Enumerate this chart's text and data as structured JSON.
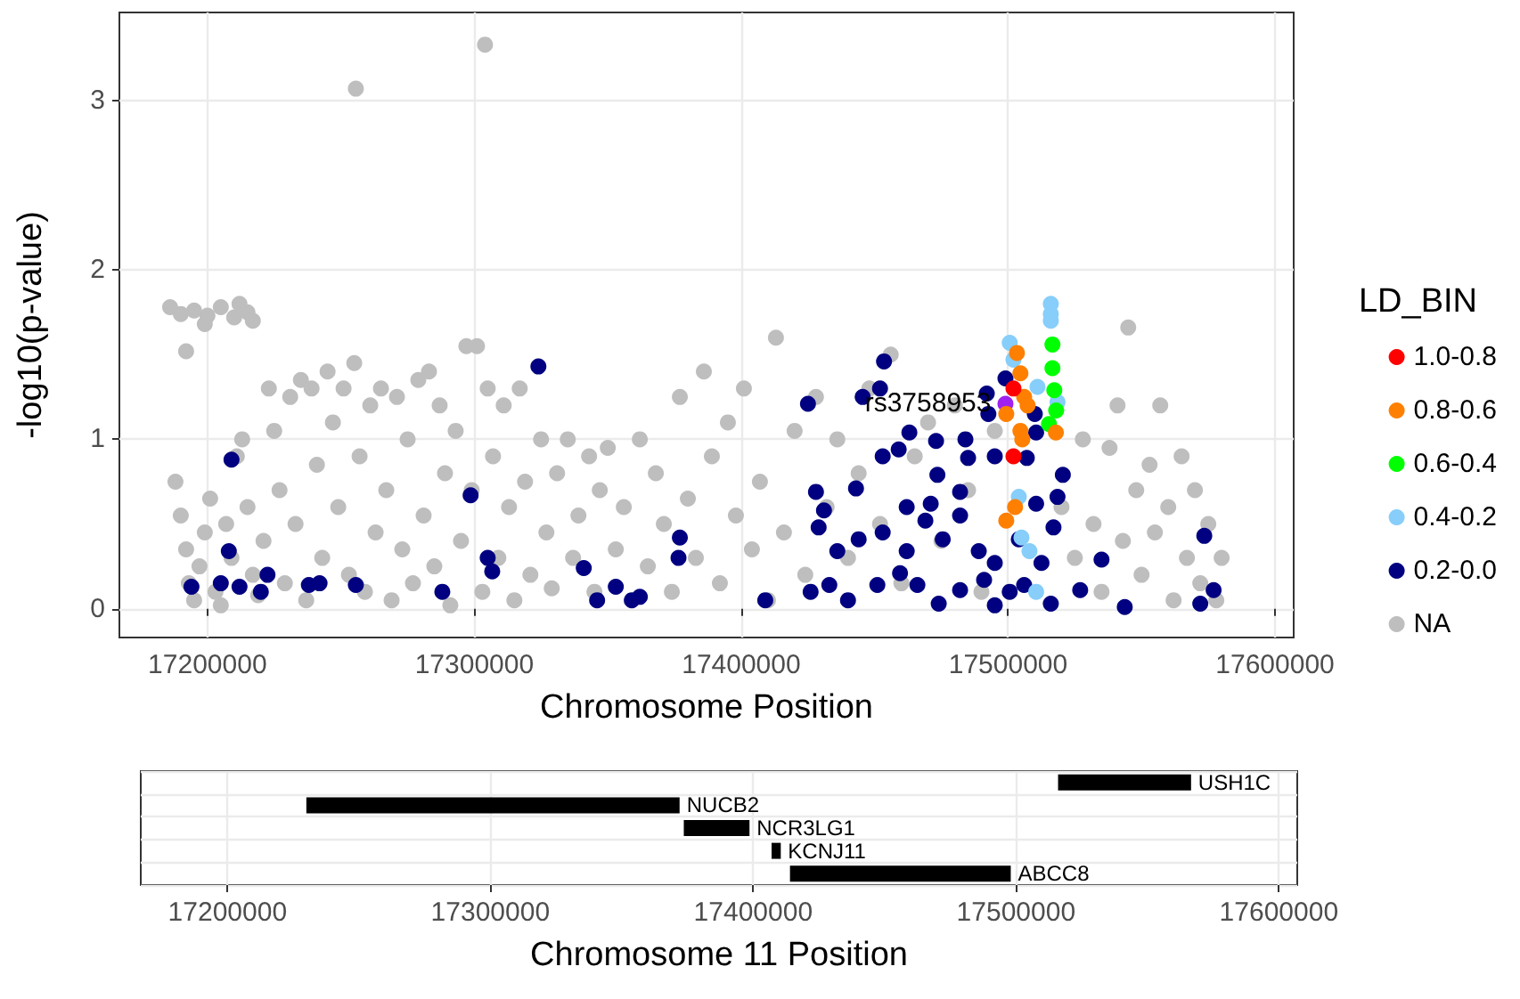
{
  "chart_data": [
    {
      "type": "scatter",
      "xlabel": "Chromosome Position",
      "ylabel": "-log10(p-value)",
      "legend_title": "LD_BIN",
      "legend": "right",
      "grid": true,
      "marker": "circle",
      "xlim": [
        17167000,
        17607000
      ],
      "xticks": [
        17200000,
        17300000,
        17400000,
        17500000,
        17600000
      ],
      "ylim": [
        -0.17,
        3.52
      ],
      "yticks": [
        0,
        1,
        2,
        3
      ],
      "annotations": [
        {
          "text": "rs3758953",
          "x": 17499000,
          "y": 1.21
        }
      ],
      "series": [
        {
          "name": "1.0-0.8",
          "color": "#ff0000",
          "x": [
            17502000,
            17502000
          ],
          "values": [
            1.3,
            0.9
          ]
        },
        {
          "name": "0.8-0.6",
          "color": "#ff7f00",
          "x": [
            17503300,
            17504600,
            17506000,
            17507300,
            17499300,
            17504600,
            17505300,
            17517900,
            17502600,
            17499300
          ],
          "values": [
            1.51,
            1.39,
            1.25,
            1.2,
            1.15,
            1.05,
            1.0,
            1.04,
            0.6,
            0.52
          ]
        },
        {
          "name": "0.6-0.4",
          "color": "#00ff00",
          "x": [
            17516600,
            17516600,
            17517300,
            17518000,
            17515300
          ],
          "values": [
            1.56,
            1.42,
            1.29,
            1.17,
            1.09
          ]
        },
        {
          "name": "0.4-0.2",
          "color": "#87cefa",
          "x": [
            17500600,
            17502000,
            17511000,
            17516000,
            17516000,
            17516000,
            17518500,
            17504000,
            17505000,
            17508000,
            17510500
          ],
          "values": [
            1.57,
            1.47,
            1.31,
            1.8,
            1.74,
            1.7,
            1.22,
            0.66,
            0.42,
            0.34,
            0.1
          ]
        },
        {
          "name": "0.2-0.0",
          "color": "#000080",
          "x": [
            17194000,
            17205000,
            17208000,
            17209000,
            17212000,
            17220000,
            17222500,
            17238000,
            17242000,
            17255600,
            17288000,
            17298600,
            17305000,
            17306700,
            17324000,
            17341000,
            17346000,
            17353000,
            17359000,
            17362000,
            17377000,
            17376500,
            17453500,
            17425000,
            17445500,
            17452000,
            17463000,
            17473000,
            17484000,
            17492000,
            17492600,
            17499000,
            17510000,
            17510500,
            17453000,
            17459000,
            17473500,
            17485000,
            17495000,
            17507000,
            17520500,
            17428000,
            17443000,
            17431000,
            17462000,
            17471000,
            17482000,
            17510500,
            17518500,
            17429000,
            17436000,
            17444000,
            17453000,
            17462000,
            17469000,
            17475500,
            17482000,
            17489000,
            17495000,
            17504000,
            17512500,
            17517000,
            17426000,
            17433000,
            17440000,
            17451000,
            17459500,
            17466000,
            17474000,
            17482000,
            17491000,
            17495000,
            17500600,
            17506000,
            17516000,
            17527000,
            17535000,
            17543700,
            17573500,
            17572000,
            17577000,
            17409000
          ],
          "values": [
            0.13,
            0.15,
            0.34,
            0.88,
            0.13,
            0.1,
            0.2,
            0.14,
            0.15,
            0.14,
            0.1,
            0.67,
            0.3,
            0.22,
            1.43,
            0.24,
            0.05,
            0.13,
            0.05,
            0.07,
            0.42,
            0.3,
            1.46,
            1.21,
            1.25,
            1.3,
            1.04,
            0.99,
            1.0,
            1.27,
            1.15,
            1.36,
            1.15,
            1.04,
            0.9,
            0.94,
            0.79,
            0.89,
            0.9,
            0.89,
            0.79,
            0.69,
            0.71,
            0.58,
            0.6,
            0.62,
            0.69,
            0.62,
            0.66,
            0.48,
            0.34,
            0.41,
            0.45,
            0.34,
            0.52,
            0.41,
            0.55,
            0.34,
            0.27,
            0.41,
            0.27,
            0.48,
            0.1,
            0.14,
            0.05,
            0.14,
            0.21,
            0.14,
            0.03,
            0.11,
            0.17,
            0.02,
            0.1,
            0.14,
            0.03,
            0.11,
            0.29,
            0.01,
            0.43,
            0.03,
            0.11,
            0.05
          ]
        },
        {
          "name": "NA",
          "color": "#bebebe",
          "x": [
            17255600,
            17304000,
            17186000,
            17190000,
            17195000,
            17200000,
            17205000,
            17210000,
            17215000,
            17217000,
            17199000,
            17212000,
            17192000,
            17188000,
            17190000,
            17192000,
            17193000,
            17195000,
            17197000,
            17199000,
            17201000,
            17203000,
            17205000,
            17207000,
            17209000,
            17211000,
            17213000,
            17215000,
            17217000,
            17219000,
            17221000,
            17223000,
            17225000,
            17227000,
            17229000,
            17231000,
            17233000,
            17235000,
            17237000,
            17239000,
            17241000,
            17243000,
            17245000,
            17247000,
            17249000,
            17251000,
            17253000,
            17255000,
            17257000,
            17259000,
            17261000,
            17263000,
            17265000,
            17267000,
            17269000,
            17271000,
            17273000,
            17275000,
            17277000,
            17279000,
            17281000,
            17283000,
            17285000,
            17287000,
            17289000,
            17291000,
            17293000,
            17295000,
            17297000,
            17299000,
            17301000,
            17303000,
            17305000,
            17307000,
            17309000,
            17311000,
            17313000,
            17315000,
            17317000,
            17319000,
            17321000,
            17325000,
            17327000,
            17329000,
            17331000,
            17335000,
            17337000,
            17339000,
            17343000,
            17345000,
            17347000,
            17350000,
            17353000,
            17356000,
            17362000,
            17365000,
            17368000,
            17371000,
            17374000,
            17377000,
            17380000,
            17383000,
            17386000,
            17389000,
            17392000,
            17395000,
            17398000,
            17401000,
            17404000,
            17407000,
            17410000,
            17413000,
            17416000,
            17420000,
            17424000,
            17428000,
            17432000,
            17436000,
            17440000,
            17444000,
            17448000,
            17452000,
            17456000,
            17460000,
            17465000,
            17470000,
            17475000,
            17480000,
            17485000,
            17490000,
            17495000,
            17520000,
            17525000,
            17528000,
            17532000,
            17535000,
            17538000,
            17541000,
            17543000,
            17545000,
            17548000,
            17550000,
            17553000,
            17555000,
            17557000,
            17560000,
            17562000,
            17565000,
            17567000,
            17570000,
            17572000,
            17575000,
            17578000,
            17580000
          ],
          "values": [
            3.07,
            3.33,
            1.78,
            1.74,
            1.76,
            1.73,
            1.78,
            1.72,
            1.75,
            1.7,
            1.68,
            1.8,
            1.52,
            0.75,
            0.55,
            0.35,
            0.15,
            0.05,
            0.25,
            0.45,
            0.65,
            0.1,
            0.02,
            0.5,
            0.3,
            0.9,
            1.0,
            0.6,
            0.2,
            0.08,
            0.4,
            1.3,
            1.05,
            0.7,
            0.15,
            1.25,
            0.5,
            1.35,
            0.05,
            1.3,
            0.85,
            0.3,
            1.4,
            1.1,
            0.6,
            1.3,
            0.2,
            1.45,
            0.9,
            0.1,
            1.2,
            0.45,
            1.3,
            0.7,
            0.05,
            1.25,
            0.35,
            1.0,
            0.15,
            1.35,
            0.55,
            1.4,
            0.25,
            1.2,
            0.8,
            0.02,
            1.05,
            0.4,
            1.55,
            0.7,
            1.55,
            0.1,
            1.3,
            0.9,
            0.3,
            1.2,
            0.6,
            0.05,
            1.3,
            0.75,
            0.2,
            1.0,
            0.45,
            0.12,
            0.8,
            1.0,
            0.3,
            0.55,
            0.9,
            0.1,
            0.7,
            0.95,
            0.35,
            0.6,
            1.0,
            0.25,
            0.8,
            0.5,
            0.1,
            1.25,
            0.65,
            0.3,
            1.4,
            0.9,
            0.15,
            1.1,
            0.55,
            1.3,
            0.35,
            0.75,
            0.05,
            1.6,
            0.45,
            1.05,
            0.2,
            1.25,
            0.6,
            1.0,
            0.3,
            0.8,
            1.3,
            0.5,
            1.5,
            0.15,
            0.9,
            1.1,
            0.4,
            1.2,
            0.7,
            0.1,
            1.05,
            0.6,
            0.3,
            1.0,
            0.5,
            0.1,
            0.95,
            1.2,
            0.4,
            1.66,
            0.7,
            0.2,
            0.85,
            0.45,
            1.2,
            0.6,
            0.05,
            0.9,
            0.3,
            0.7,
            0.15,
            0.5,
            0.05,
            0.3
          ]
        },
        {
          "color": "#a020f0",
          "x": [
            17499000
          ],
          "values": [
            1.21
          ]
        }
      ]
    },
    {
      "type": "bar",
      "orientation": "horizontal",
      "xlabel": "Chromosome 11 Position",
      "grid": true,
      "tick_labels": "x",
      "xlim": [
        17167000,
        17607000
      ],
      "xticks": [
        17200000,
        17300000,
        17400000,
        17500000,
        17600000
      ],
      "categories": [
        "USH1C",
        "NUCB2",
        "NCR3LG1",
        "KCNJ11",
        "ABCC8"
      ],
      "base": [
        17516000,
        17230000,
        17373600,
        17407000,
        17414000
      ],
      "values": [
        50600,
        142000,
        25000,
        3500,
        84000
      ],
      "color": "#000000"
    }
  ]
}
